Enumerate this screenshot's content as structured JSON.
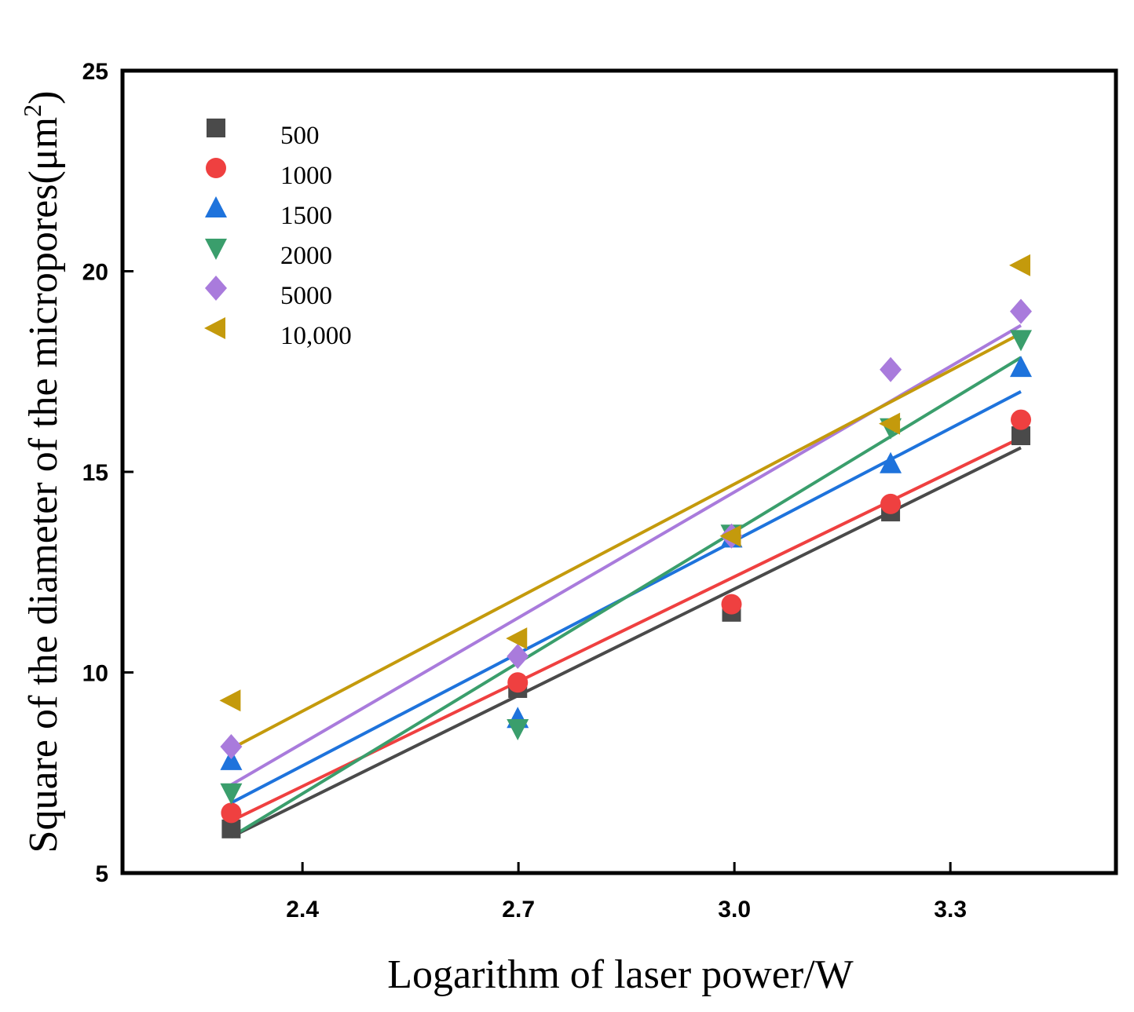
{
  "chart_data": {
    "type": "scatter",
    "title": "",
    "xlabel": "Logarithm of laser power/W",
    "ylabel": {
      "main": "Square of the diameter of the micropores(μm",
      "superscript": "2",
      "closing": ")"
    },
    "xlim": [
      2.15,
      3.53
    ],
    "ylim": [
      5,
      25
    ],
    "xticks": [
      2.4,
      2.7,
      3.0,
      3.3
    ],
    "xtick_labels": [
      "2.4",
      "2.7",
      "3.0",
      "3.3"
    ],
    "yticks": [
      5,
      10,
      15,
      20,
      25
    ],
    "ytick_labels": [
      "5",
      "10",
      "15",
      "20",
      "25"
    ],
    "x": [
      2.301,
      2.699,
      2.996,
      3.217,
      3.398
    ],
    "legend_position": "top-left",
    "grid": false,
    "series": [
      {
        "name": "500",
        "marker": "square",
        "color": "#4a4a4a",
        "values": [
          6.1,
          9.6,
          11.5,
          14.0,
          15.9
        ],
        "fit": [
          5.9,
          15.6
        ]
      },
      {
        "name": "1000",
        "marker": "circle",
        "color": "#ef4040",
        "values": [
          6.5,
          9.75,
          11.7,
          14.2,
          16.3
        ],
        "fit": [
          6.3,
          15.85
        ]
      },
      {
        "name": "1500",
        "marker": "triangle-up",
        "color": "#1e73dc",
        "values": [
          7.8,
          8.85,
          13.35,
          15.2,
          17.6
        ],
        "fit": [
          6.75,
          17.0
        ]
      },
      {
        "name": "2000",
        "marker": "triangle-down",
        "color": "#3a9e6c",
        "values": [
          7.0,
          8.6,
          13.45,
          16.1,
          18.3
        ],
        "fit": [
          5.9,
          17.85
        ]
      },
      {
        "name": "5000",
        "marker": "diamond",
        "color": "#a97bdc",
        "values": [
          8.15,
          10.4,
          13.4,
          17.55,
          19.0
        ],
        "fit": [
          7.2,
          18.65
        ]
      },
      {
        "name": "10,000",
        "marker": "triangle-left",
        "color": "#c49a0c",
        "values": [
          9.3,
          10.85,
          13.4,
          16.2,
          20.15
        ],
        "fit": [
          8.1,
          18.45
        ]
      }
    ]
  }
}
